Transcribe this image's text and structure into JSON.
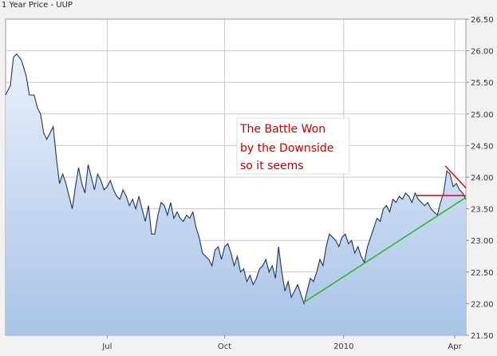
{
  "chart_data": {
    "type": "line",
    "title": "1 Year Price - UUP",
    "xlabel": "",
    "ylabel": "",
    "ylim": [
      21.5,
      26.5
    ],
    "y_ticks": [
      "21.50",
      "22.00",
      "22.50",
      "23.00",
      "23.50",
      "24.00",
      "24.50",
      "25.00",
      "25.50",
      "26.00",
      "26.50"
    ],
    "x_ticks": [
      {
        "label": "Jul",
        "t": 128
      },
      {
        "label": "Oct",
        "t": 276
      },
      {
        "label": "2010",
        "t": 426
      },
      {
        "label": "Apr",
        "t": 566
      }
    ],
    "x_range_index": [
      0,
      580
    ],
    "grid": true,
    "legend": "none",
    "series": [
      {
        "color": "#1f3552",
        "fill_color": "#a9c4e8",
        "points": [
          [
            0,
            25.3
          ],
          [
            6,
            25.45
          ],
          [
            10,
            25.9
          ],
          [
            14,
            25.95
          ],
          [
            20,
            25.85
          ],
          [
            26,
            25.6
          ],
          [
            30,
            25.3
          ],
          [
            36,
            25.3
          ],
          [
            40,
            25.1
          ],
          [
            44,
            25.0
          ],
          [
            48,
            24.7
          ],
          [
            52,
            24.6
          ],
          [
            56,
            24.7
          ],
          [
            60,
            24.8
          ],
          [
            64,
            24.3
          ],
          [
            68,
            23.9
          ],
          [
            72,
            24.05
          ],
          [
            76,
            23.9
          ],
          [
            80,
            23.7
          ],
          [
            84,
            23.5
          ],
          [
            88,
            23.85
          ],
          [
            92,
            24.15
          ],
          [
            96,
            23.9
          ],
          [
            100,
            23.75
          ],
          [
            104,
            24.2
          ],
          [
            108,
            24.0
          ],
          [
            112,
            23.8
          ],
          [
            116,
            24.05
          ],
          [
            120,
            23.95
          ],
          [
            124,
            23.8
          ],
          [
            128,
            23.85
          ],
          [
            132,
            23.95
          ],
          [
            136,
            23.8
          ],
          [
            140,
            23.7
          ],
          [
            144,
            23.65
          ],
          [
            148,
            23.8
          ],
          [
            152,
            23.7
          ],
          [
            156,
            23.55
          ],
          [
            160,
            23.65
          ],
          [
            164,
            23.5
          ],
          [
            168,
            23.7
          ],
          [
            172,
            23.5
          ],
          [
            176,
            23.3
          ],
          [
            180,
            23.55
          ],
          [
            184,
            23.1
          ],
          [
            188,
            23.1
          ],
          [
            192,
            23.4
          ],
          [
            196,
            23.6
          ],
          [
            200,
            23.55
          ],
          [
            204,
            23.4
          ],
          [
            208,
            23.6
          ],
          [
            212,
            23.35
          ],
          [
            216,
            23.45
          ],
          [
            220,
            23.35
          ],
          [
            224,
            23.3
          ],
          [
            228,
            23.4
          ],
          [
            232,
            23.35
          ],
          [
            236,
            23.45
          ],
          [
            240,
            23.2
          ],
          [
            244,
            23.05
          ],
          [
            248,
            22.8
          ],
          [
            252,
            22.75
          ],
          [
            256,
            22.7
          ],
          [
            260,
            22.6
          ],
          [
            264,
            22.85
          ],
          [
            268,
            22.9
          ],
          [
            272,
            22.7
          ],
          [
            276,
            22.9
          ],
          [
            280,
            22.95
          ],
          [
            284,
            22.8
          ],
          [
            288,
            22.6
          ],
          [
            292,
            22.75
          ],
          [
            296,
            22.5
          ],
          [
            300,
            22.55
          ],
          [
            304,
            22.35
          ],
          [
            308,
            22.45
          ],
          [
            312,
            22.3
          ],
          [
            316,
            22.4
          ],
          [
            320,
            22.55
          ],
          [
            324,
            22.6
          ],
          [
            328,
            22.7
          ],
          [
            332,
            22.5
          ],
          [
            336,
            22.6
          ],
          [
            340,
            22.4
          ],
          [
            344,
            22.9
          ],
          [
            348,
            22.5
          ],
          [
            352,
            22.2
          ],
          [
            356,
            22.35
          ],
          [
            360,
            22.1
          ],
          [
            364,
            22.2
          ],
          [
            368,
            22.3
          ],
          [
            372,
            22.15
          ],
          [
            376,
            22.0
          ],
          [
            380,
            22.2
          ],
          [
            384,
            22.4
          ],
          [
            388,
            22.35
          ],
          [
            392,
            22.5
          ],
          [
            396,
            22.7
          ],
          [
            400,
            22.6
          ],
          [
            404,
            22.9
          ],
          [
            408,
            23.1
          ],
          [
            412,
            23.05
          ],
          [
            416,
            23.0
          ],
          [
            420,
            22.9
          ],
          [
            424,
            23.05
          ],
          [
            428,
            23.1
          ],
          [
            432,
            22.95
          ],
          [
            436,
            23.0
          ],
          [
            440,
            22.8
          ],
          [
            444,
            22.9
          ],
          [
            448,
            22.75
          ],
          [
            452,
            22.65
          ],
          [
            456,
            22.9
          ],
          [
            460,
            23.05
          ],
          [
            464,
            23.2
          ],
          [
            468,
            23.35
          ],
          [
            472,
            23.3
          ],
          [
            476,
            23.5
          ],
          [
            480,
            23.55
          ],
          [
            484,
            23.45
          ],
          [
            488,
            23.65
          ],
          [
            492,
            23.6
          ],
          [
            496,
            23.7
          ],
          [
            500,
            23.65
          ],
          [
            504,
            23.75
          ],
          [
            508,
            23.7
          ],
          [
            512,
            23.6
          ],
          [
            516,
            23.75
          ],
          [
            520,
            23.65
          ],
          [
            524,
            23.6
          ],
          [
            528,
            23.55
          ],
          [
            532,
            23.6
          ],
          [
            536,
            23.5
          ],
          [
            540,
            23.45
          ],
          [
            544,
            23.4
          ],
          [
            548,
            23.6
          ],
          [
            552,
            23.75
          ],
          [
            556,
            24.1
          ],
          [
            560,
            24.05
          ],
          [
            564,
            23.85
          ],
          [
            568,
            23.9
          ],
          [
            572,
            23.8
          ],
          [
            576,
            23.75
          ],
          [
            580,
            23.65
          ]
        ]
      }
    ],
    "annotations": [
      {
        "type": "box",
        "lines": [
          "The Battle Won",
          "by the Downside",
          "so it seems"
        ],
        "text_color": "#c00000"
      },
      {
        "type": "trendline",
        "name": "support",
        "color": "#33b433",
        "from": [
          376,
          22.02
        ],
        "to": [
          580,
          23.68
        ]
      },
      {
        "type": "trendline",
        "name": "resistance-top",
        "color": "#cc1a1a",
        "from": [
          554,
          24.18
        ],
        "to": [
          580,
          23.83
        ]
      },
      {
        "type": "trendline",
        "name": "horizontal",
        "color": "#cc1a1a",
        "from": [
          518,
          23.71
        ],
        "to": [
          580,
          23.71
        ]
      }
    ]
  }
}
